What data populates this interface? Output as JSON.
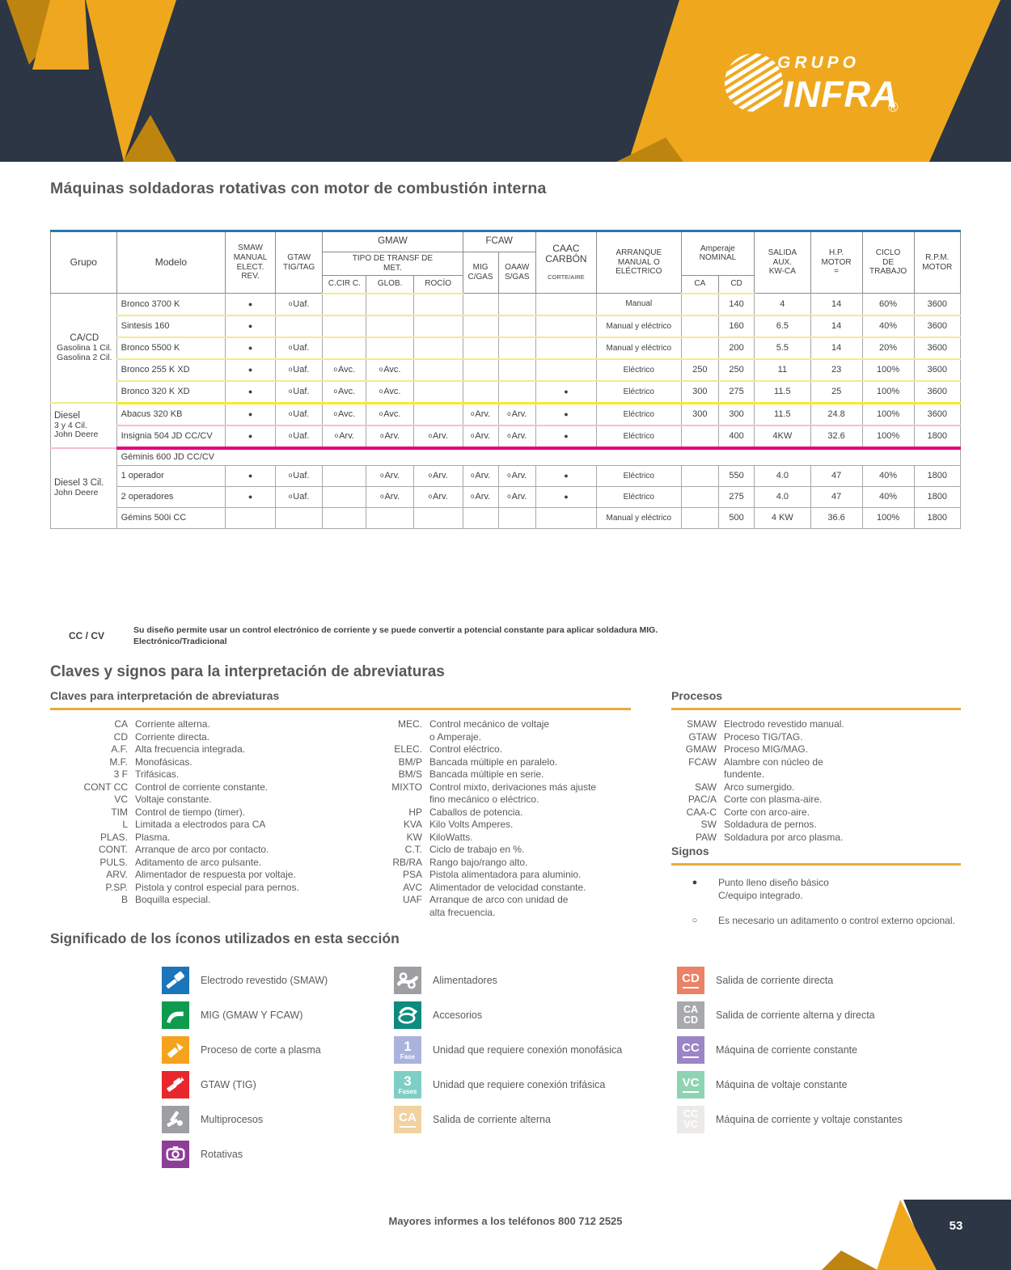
{
  "header": {
    "grupo": "GRUPO",
    "infra": "INFRA",
    "registered": "®",
    "page_number": "53"
  },
  "title": "Máquinas soldadoras rotativas con motor de combustión  interna",
  "footer": {
    "text": "Mayores informes a los teléfonos 800 712 2525"
  },
  "colors": {
    "navy": "#2c3644",
    "gold": "#efa81e",
    "gold_dark": "#bd850f",
    "teal_rule": "#2779a8",
    "yellow_sep": "#f2ea8f",
    "yellow_strong": "#f8e82d",
    "pink_sep": "#f7bed2",
    "magenta_strong": "#e3017e",
    "gold_underline": "#e7ab3f"
  },
  "table": {
    "head": {
      "grupo": "Grupo",
      "modelo": "Modelo",
      "smaw": "SMAW\nMANUAL\nELECT. REV.",
      "gtaw": "GTAW\nTIG/TAG",
      "gmaw": "GMAW",
      "fcaw": "FCAW",
      "tipo": "TIPO DE TRANSF DE\nMET.",
      "ccirc": "C.CIR C.",
      "glob": "GLOB.",
      "rocio": "ROCÍO",
      "mig": "MIG\nC/GAS",
      "oaaw": "OAAW\nS/GAS",
      "caac": "CAAC\nCARBÓN",
      "caac_small": "CORTE/AIRE",
      "arranque": "ARRANQUE\nMANUAL O\nELÉCTRICO",
      "amperaje": "Amperaje NOMINAL",
      "ca": "CA",
      "cd": "CD",
      "salida": "SALIDA\nAUX.\nKW-CA",
      "hp": "H.P.\nMOTOR\n=",
      "ciclo": "CICLO\nDE\nTRABAJO",
      "rpm": "R.P.M.\nMOTOR"
    },
    "rows": [
      {
        "group": {
          "lines": [
            "CA/CD",
            "Gasolina 1 Cil.",
            "Gasolina 2 Cil."
          ],
          "span": 5,
          "align": "center"
        },
        "model": "Bronco 3700 K",
        "smaw": "●",
        "gtaw": "oUaf.",
        "arranque": "Manual",
        "cd": "140",
        "salida": "4",
        "hp": "14",
        "ciclo": "60%",
        "rpm": "3600",
        "sep": "y"
      },
      {
        "model": "Sintesis 160",
        "smaw": "●",
        "arranque": "Manual y eléctrico",
        "cd": "160",
        "salida": "6.5",
        "hp": "14",
        "ciclo": "40%",
        "rpm": "3600",
        "sep": "y"
      },
      {
        "model": "Bronco 5500 K",
        "smaw": "●",
        "gtaw": "oUaf.",
        "arranque": "Manual y eléctrico",
        "cd": "200",
        "salida": "5.5",
        "hp": "14",
        "ciclo": "20%",
        "rpm": "3600",
        "sep": "y"
      },
      {
        "model": "Bronco 255 K XD",
        "smaw": "●",
        "gtaw": "oUaf.",
        "ccirc": "oAvc.",
        "glob": "oAvc.",
        "arranque": "Eléctrico",
        "ca": "250",
        "cd": "250",
        "salida": "11",
        "hp": "23",
        "ciclo": "100%",
        "rpm": "3600",
        "sep": "y"
      },
      {
        "model": "Bronco 320 K XD",
        "smaw": "●",
        "gtaw": "oUaf.",
        "ccirc": "oAvc.",
        "glob": "oAvc.",
        "caac": "●",
        "arranque": "Eléctrico",
        "ca": "300",
        "cd": "275",
        "salida": "11.5",
        "hp": "25",
        "ciclo": "100%",
        "rpm": "3600",
        "sep": "Y"
      },
      {
        "group": {
          "lines": [
            "Diesel",
            "3 y 4 Cil.",
            "John Deere"
          ],
          "span": 2,
          "align": "left"
        },
        "model": "Abacus 320 KB",
        "smaw": "●",
        "gtaw": "oUaf.",
        "ccirc": "oAvc.",
        "glob": "oAvc.",
        "mig": "oArv.",
        "oaaw": "oArv.",
        "caac": "●",
        "arranque": "Eléctrico",
        "ca": "300",
        "cd": "300",
        "salida": "11.5",
        "hp": "24.8",
        "ciclo": "100%",
        "rpm": "3600",
        "sep": "p"
      },
      {
        "model": "Insignia 504 JD CC/CV",
        "smaw": "●",
        "gtaw": "oUaf.",
        "ccirc": "oArv.",
        "glob": "oArv.",
        "rocio": "oArv.",
        "mig": "oArv.",
        "oaaw": "oArv.",
        "caac": "●",
        "arranque": "Eléctrico",
        "cd": "400",
        "salida": "4KW",
        "hp": "32.6",
        "ciclo": "100%",
        "rpm": "1800",
        "sep": "M"
      },
      {
        "group": {
          "lines": [
            "Diesel 3 Cil.",
            "John Deere"
          ],
          "span": 4,
          "align": "left"
        },
        "model": "Géminis 600 JD CC/CV",
        "subheader": true,
        "sep": "g"
      },
      {
        "model": "1 operador",
        "smaw": "●",
        "gtaw": "oUaf.",
        "glob": "oArv.",
        "rocio": "oArv.",
        "mig": "oArv.",
        "oaaw": "oArv.",
        "caac": "●",
        "arranque": "Eléctrico",
        "cd": "550",
        "salida": "4.0",
        "hp": "47",
        "ciclo": "40%",
        "rpm": "1800",
        "sep": "g"
      },
      {
        "model": "2 operadores",
        "smaw": "●",
        "gtaw": "oUaf.",
        "glob": "oArv.",
        "rocio": "oArv.",
        "mig": "oArv.",
        "oaaw": "oArv.",
        "caac": "●",
        "arranque": "Eléctrico",
        "cd": "275",
        "salida": "4.0",
        "hp": "47",
        "ciclo": "40%",
        "rpm": "1800",
        "sep": "g"
      },
      {
        "model": "Gémins 500i CC",
        "arranque": "Manual y eléctrico",
        "cd": "500",
        "salida": "4 KW",
        "hp": "36.6",
        "ciclo": "100%",
        "rpm": "1800",
        "sep": "g"
      }
    ]
  },
  "note": {
    "term": "CC / CV",
    "line1": "Su diseño permite usar un control electrónico de corriente y se puede convertir a potencial constante para aplicar soldadura MIG.",
    "line2": "Electrónico/Tradicional"
  },
  "claves": {
    "heading": "Claves y signos para la interpretación de abreviaturas",
    "subheading": "Claves para interpretación de abreviaturas",
    "col1": [
      [
        "CA",
        "Corriente alterna."
      ],
      [
        "CD",
        "Corriente directa."
      ],
      [
        "A.F.",
        "Alta frecuencia integrada."
      ],
      [
        "M.F.",
        "Monofásicas."
      ],
      [
        "3 F",
        "Trifásicas."
      ],
      [
        "CONT CC",
        "Control de corriente constante."
      ],
      [
        "VC",
        "Voltaje constante."
      ],
      [
        "TIM",
        "Control de tiempo (timer)."
      ],
      [
        "L",
        "Limitada a electrodos para CA"
      ],
      [
        "PLAS.",
        "Plasma."
      ],
      [
        "CONT.",
        "Arranque de arco por contacto."
      ],
      [
        "PULS.",
        "Aditamento de arco pulsante."
      ],
      [
        "ARV.",
        "Alimentador de respuesta por voltaje."
      ],
      [
        "P.SP.",
        "Pistola y control especial para pernos."
      ],
      [
        "B",
        "Boquilla especial."
      ]
    ],
    "col2": [
      [
        "MEC.",
        "Control mecánico de voltaje\no Amperaje."
      ],
      [
        "ELEC.",
        "Control eléctrico."
      ],
      [
        "BM/P",
        "Bancada múltiple en paralelo."
      ],
      [
        "BM/S",
        "Bancada múltiple en serie."
      ],
      [
        "MIXTO",
        "Control mixto, derivaciones más ajuste\nfino mecánico o eléctrico."
      ],
      [
        "HP",
        "Caballos de potencia."
      ],
      [
        "KVA",
        "Kilo Volts Amperes."
      ],
      [
        "KW",
        "KiloWatts."
      ],
      [
        "C.T.",
        "Ciclo de trabajo en %."
      ],
      [
        "RB/RA",
        "Rango bajo/rango alto."
      ],
      [
        "PSA",
        "Pistola alimentadora para aluminio."
      ],
      [
        "AVC",
        "Alimentador de velocidad constante."
      ],
      [
        "UAF",
        "Arranque de arco con unidad de\nalta frecuencia."
      ]
    ]
  },
  "procesos": {
    "heading": "Procesos",
    "items": [
      [
        "SMAW",
        "Electrodo revestido manual."
      ],
      [
        "GTAW",
        "Proceso TIG/TAG."
      ],
      [
        "GMAW",
        "Proceso MIG/MAG."
      ],
      [
        "FCAW",
        "Alambre con núcleo de\nfundente."
      ],
      [
        "SAW",
        "Arco sumergido."
      ],
      [
        "PAC/A",
        "Corte con plasma-aire."
      ],
      [
        "CAA-C",
        "Corte con arco-aire."
      ],
      [
        "SW",
        "Soldadura de pernos."
      ],
      [
        "PAW",
        "Soldadura por arco plasma."
      ]
    ]
  },
  "signos": {
    "heading": "Signos",
    "items": [
      {
        "sym": "●",
        "text": "Punto lleno diseño básico\nC/equipo integrado."
      },
      {
        "sym": "○",
        "text": "Es necesario un aditamento o control externo opcional."
      }
    ]
  },
  "iconos": {
    "heading": "Significado de los íconos utilizados en esta sección",
    "col1": [
      {
        "glyph": "electrode",
        "color": "#1b75bb",
        "label": "Electrodo revestido (SMAW)",
        "name": "smaw-icon"
      },
      {
        "glyph": "mig",
        "color": "#0f9b4f",
        "label": "MIG (GMAW Y FCAW)",
        "name": "mig-icon"
      },
      {
        "glyph": "plasma",
        "color": "#f5a31f",
        "label": "Proceso de corte a plasma",
        "name": "plasma-cut-icon"
      },
      {
        "glyph": "tig",
        "color": "#e8272c",
        "label": "GTAW (TIG)",
        "name": "gtaw-icon"
      },
      {
        "glyph": "multi",
        "color": "#9d9fa2",
        "label": "Multiprocesos",
        "name": "multiprocesos-icon"
      },
      {
        "glyph": "rotary",
        "color": "#8d3f98",
        "label": "Rotativas",
        "name": "rotativas-icon"
      }
    ],
    "col2": [
      {
        "glyph": "feeder",
        "color": "#9d9fa2",
        "label": "Alimentadores",
        "name": "alimentadores-icon"
      },
      {
        "glyph": "accessory",
        "color": "#0d8b7f",
        "label": "Accesorios",
        "name": "accesorios-icon"
      },
      {
        "text": [
          "1",
          "Fase"
        ],
        "color": "#a9b3dd",
        "label": "Unidad que requiere conexión monofásica",
        "name": "monofasica-icon"
      },
      {
        "text": [
          "3",
          "Fases"
        ],
        "color": "#7fcec5",
        "label": "Unidad que requiere conexión trifásica",
        "name": "trifasica-icon"
      },
      {
        "text": [
          "CA"
        ],
        "bar": true,
        "color": "#f2d2a0",
        "label": "Salida de corriente alterna",
        "name": "salida-ca-icon"
      }
    ],
    "col3": [
      {
        "text": [
          "CD"
        ],
        "bar": true,
        "color": "#eb8166",
        "label": "Salida de corriente directa",
        "name": "salida-cd-icon"
      },
      {
        "text": [
          "CA",
          "CD"
        ],
        "color": "#a7a9ac",
        "label": "Salida de corriente alterna y directa",
        "name": "salida-ca-cd-icon"
      },
      {
        "text": [
          "CC"
        ],
        "bar": true,
        "color": "#9b85c6",
        "label": "Máquina de corriente constante",
        "name": "corriente-constante-icon"
      },
      {
        "text": [
          "VC"
        ],
        "bar": true,
        "color": "#8ed3b2",
        "label": "Máquina de voltaje constante",
        "name": "voltaje-constante-icon"
      },
      {
        "text": [
          "CC",
          "VC"
        ],
        "color": "#eceae9",
        "label": "Máquina de corriente y voltaje constantes",
        "name": "cc-vc-icon"
      }
    ]
  }
}
